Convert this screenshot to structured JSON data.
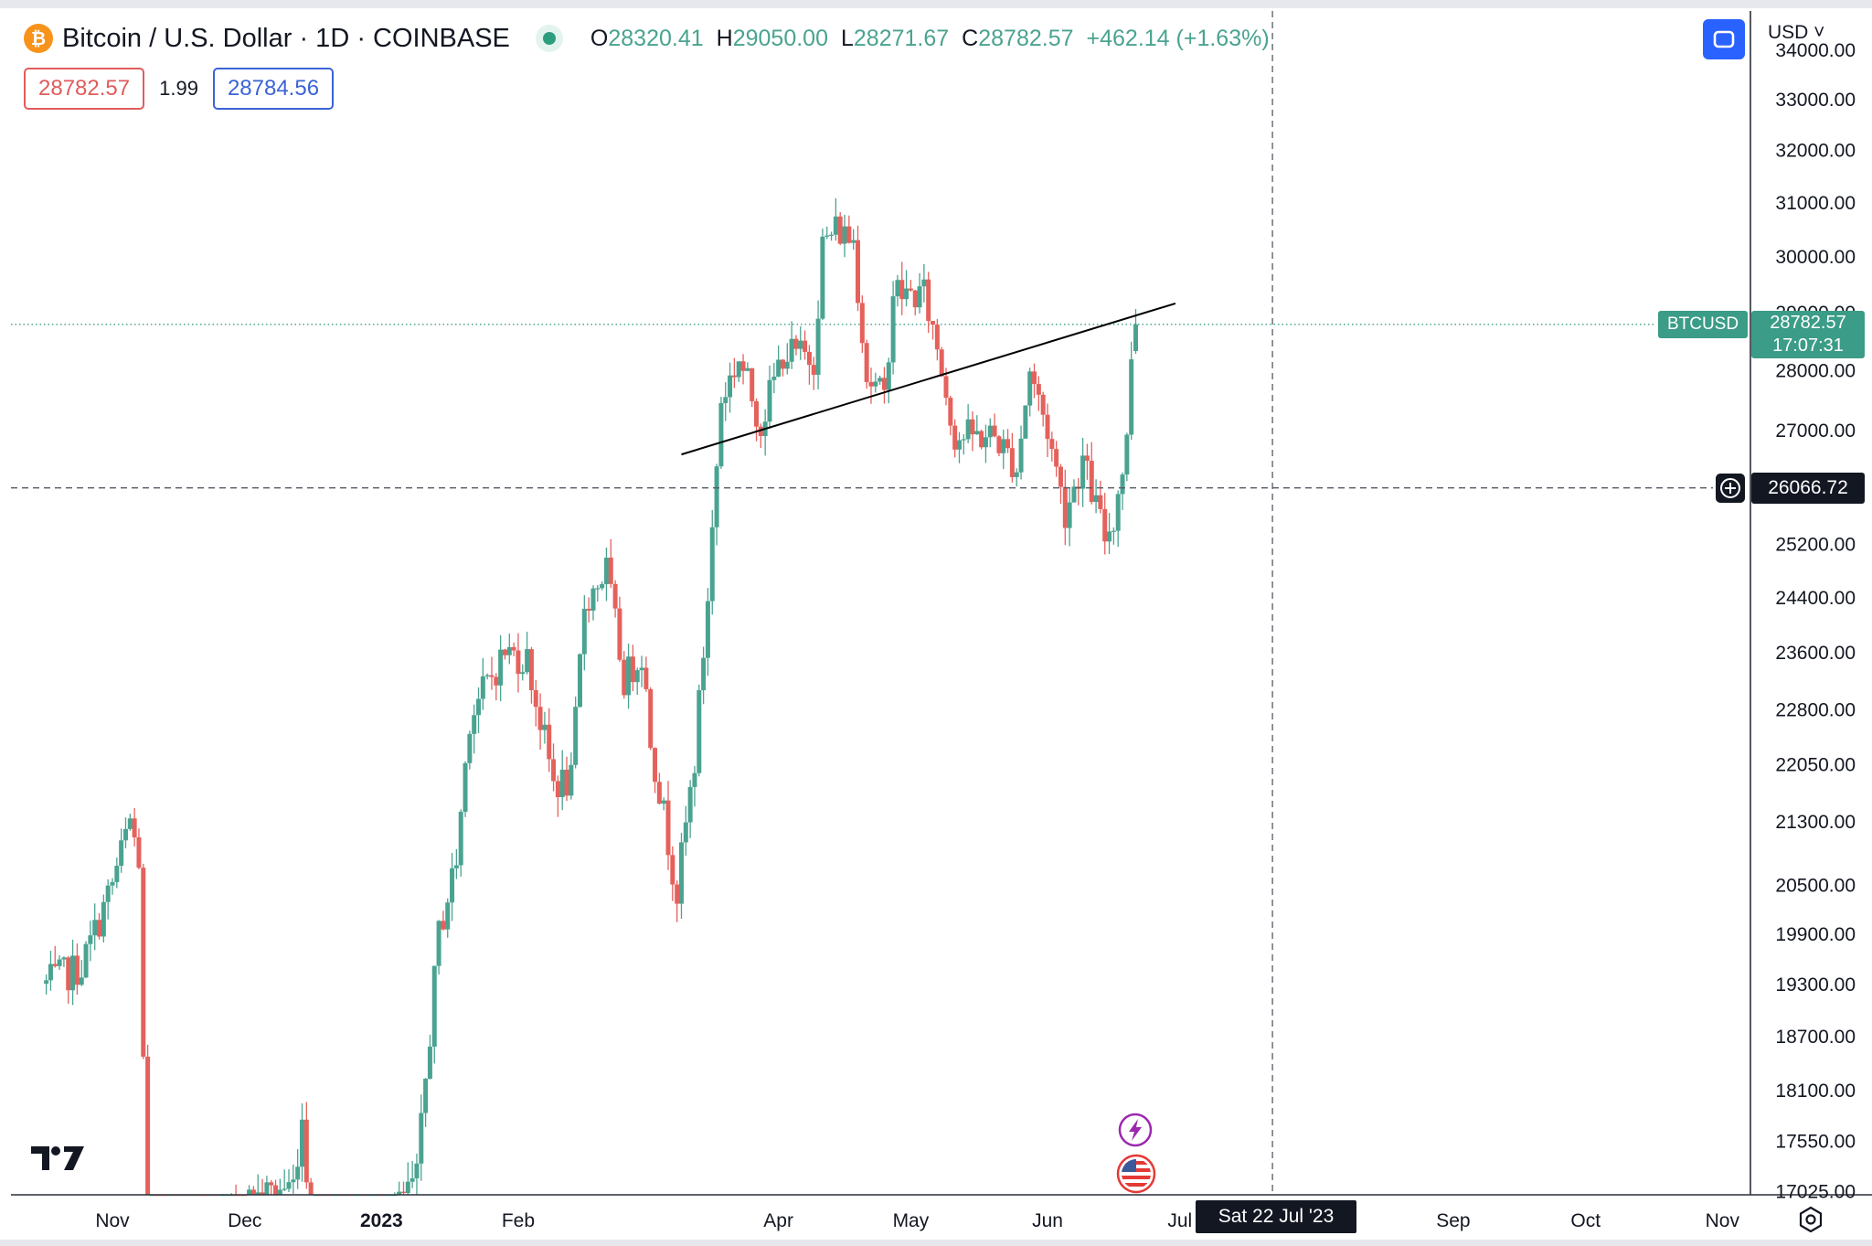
{
  "header": {
    "symbol_icon_glyph": "₿",
    "title": "Bitcoin / U.S. Dollar · 1D · COINBASE",
    "ohlc": {
      "open_label": "O",
      "open": "28320.41",
      "high_label": "H",
      "high": "29050.00",
      "low_label": "L",
      "low": "28271.67",
      "close_label": "C",
      "close": "28782.57",
      "change": "+462.14 (+1.63%)"
    }
  },
  "quote": {
    "sell": "28782.57",
    "spread": "1.99",
    "buy": "28784.56"
  },
  "toolbar": {
    "currency": "USD ˅"
  },
  "price_scale": {
    "ticks": [
      "34000.00",
      "33000.00",
      "32000.00",
      "31000.00",
      "30000.00",
      "29000.00",
      "28000.00",
      "27000.00",
      "25200.00",
      "24400.00",
      "23600.00",
      "22800.00",
      "22050.00",
      "21300.00",
      "20500.00",
      "19900.00",
      "19300.00",
      "18700.00",
      "18100.00",
      "17550.00",
      "17025.00"
    ],
    "symbol_tag": "BTCUSD",
    "last_price": "28782.57",
    "countdown": "17:07:31",
    "crosshair_price": "26066.72"
  },
  "time_scale": {
    "labels": [
      "Nov",
      "Dec",
      "2023",
      "Feb",
      "Apr",
      "May",
      "Jun",
      "Jul",
      "Sep",
      "Oct",
      "Nov"
    ],
    "crosshair_date": "Sat 22 Jul '23"
  },
  "colors": {
    "up": "#4aa390",
    "down": "#e5615c",
    "price_line": "#3b9c87",
    "crosshair": "#555a66",
    "trendline": "#000000"
  },
  "icons": {
    "logo": "tradingview-logo-icon",
    "event1": "lightning-icon",
    "event2": "us-flag-icon",
    "settings": "settings-icon",
    "layout": "layout-icon"
  },
  "chart_data": {
    "type": "candlestick",
    "symbol": "BTCUSD",
    "timeframe": "1D",
    "scale": "log",
    "ylim": [
      17025,
      34000
    ],
    "x_range": [
      "2022-10-17",
      "2023-11-18"
    ],
    "last": {
      "open": 28320.41,
      "high": 29050.0,
      "low": 28271.67,
      "close": 28782.57,
      "change": 462.14,
      "change_pct": 1.63
    },
    "crosshair": {
      "price": 26066.72,
      "date": "2023-07-22"
    },
    "trendline": [
      {
        "date": "2023-03-10",
        "price": 26600
      },
      {
        "date": "2023-06-30",
        "price": 29150
      }
    ],
    "grid": false,
    "anchors": [
      {
        "date": "2022-10-17",
        "price": 19300
      },
      {
        "date": "2022-10-25",
        "price": 19500
      },
      {
        "date": "2022-11-01",
        "price": 20500
      },
      {
        "date": "2022-11-05",
        "price": 21300
      },
      {
        "date": "2022-11-07",
        "price": 20800
      },
      {
        "date": "2022-11-09",
        "price": 16200
      },
      {
        "date": "2022-11-20",
        "price": 16400
      },
      {
        "date": "2022-12-01",
        "price": 16900
      },
      {
        "date": "2022-12-12",
        "price": 17100
      },
      {
        "date": "2022-12-14",
        "price": 17800
      },
      {
        "date": "2022-12-16",
        "price": 16700
      },
      {
        "date": "2022-12-31",
        "price": 16550
      },
      {
        "date": "2023-01-09",
        "price": 17150
      },
      {
        "date": "2023-01-14",
        "price": 19900
      },
      {
        "date": "2023-01-18",
        "price": 20800
      },
      {
        "date": "2023-01-21",
        "price": 22700
      },
      {
        "date": "2023-01-29",
        "price": 23600
      },
      {
        "date": "2023-02-03",
        "price": 23500
      },
      {
        "date": "2023-02-09",
        "price": 21800
      },
      {
        "date": "2023-02-13",
        "price": 21800
      },
      {
        "date": "2023-02-16",
        "price": 24300
      },
      {
        "date": "2023-02-21",
        "price": 24800
      },
      {
        "date": "2023-02-25",
        "price": 23200
      },
      {
        "date": "2023-03-01",
        "price": 23600
      },
      {
        "date": "2023-03-03",
        "price": 22400
      },
      {
        "date": "2023-03-09",
        "price": 20400
      },
      {
        "date": "2023-03-13",
        "price": 22100
      },
      {
        "date": "2023-03-16",
        "price": 24400
      },
      {
        "date": "2023-03-19",
        "price": 27500
      },
      {
        "date": "2023-03-23",
        "price": 28200
      },
      {
        "date": "2023-03-28",
        "price": 27100
      },
      {
        "date": "2023-04-02",
        "price": 28300
      },
      {
        "date": "2023-04-09",
        "price": 28200
      },
      {
        "date": "2023-04-11",
        "price": 30200
      },
      {
        "date": "2023-04-14",
        "price": 30500
      },
      {
        "date": "2023-04-18",
        "price": 30300
      },
      {
        "date": "2023-04-21",
        "price": 27900
      },
      {
        "date": "2023-04-25",
        "price": 27500
      },
      {
        "date": "2023-04-27",
        "price": 29400
      },
      {
        "date": "2023-04-30",
        "price": 29300
      },
      {
        "date": "2023-05-04",
        "price": 29300
      },
      {
        "date": "2023-05-07",
        "price": 28400
      },
      {
        "date": "2023-05-11",
        "price": 26900
      },
      {
        "date": "2023-05-20",
        "price": 26900
      },
      {
        "date": "2023-05-25",
        "price": 26400
      },
      {
        "date": "2023-05-28",
        "price": 28000
      },
      {
        "date": "2023-06-01",
        "price": 27000
      },
      {
        "date": "2023-06-05",
        "price": 25700
      },
      {
        "date": "2023-06-09",
        "price": 26500
      },
      {
        "date": "2023-06-14",
        "price": 25300
      },
      {
        "date": "2023-06-16",
        "price": 25600
      },
      {
        "date": "2023-06-19",
        "price": 26800
      },
      {
        "date": "2023-06-20",
        "price": 28300
      },
      {
        "date": "2023-06-21",
        "price": 28782.57
      }
    ]
  }
}
